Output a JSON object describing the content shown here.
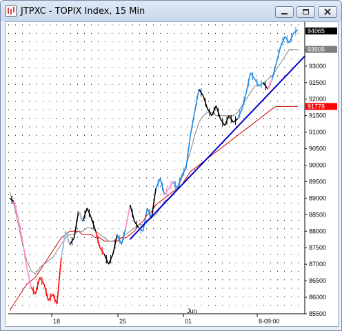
{
  "window": {
    "title": "JTPXC - TOPIX Index, 15 Min",
    "buttons": [
      "minimize",
      "maximize",
      "close"
    ]
  },
  "icons": {
    "app_icon": "candlestick-chart-icon",
    "minimize": "minimize-icon",
    "maximize": "maximize-icon",
    "close": "close-icon"
  },
  "colors": {
    "up_bar": "#1e88e5",
    "down_bar": "#000000",
    "red_bar": "#ff0000",
    "pink_bar": "#ff88cc",
    "lightblue_bar": "#99b8d8",
    "trendline": "#0000cc",
    "ma_slow": "#cc0000",
    "ma_fast": "#808080",
    "grid": "#000000"
  },
  "price_labels": {
    "last_price": "94065",
    "ma_fast_value": "93505",
    "ma_slow_value": "91778"
  },
  "chart_data": {
    "type": "line",
    "title": "JTPXC - TOPIX Index, 15 Min",
    "xlabel": "",
    "ylabel": "",
    "ylim": [
      85500,
      94250
    ],
    "y_ticks": [
      "93500",
      "93000",
      "92500",
      "92000",
      "91500",
      "91000",
      "90500",
      "90000",
      "89500",
      "89000",
      "88500",
      "88000",
      "87500",
      "87000",
      "86500",
      "86000",
      "85500"
    ],
    "x_ticks": [
      "18",
      "25",
      "01",
      "8-09:00"
    ],
    "x_annotations": [
      "Jun"
    ],
    "grid": true,
    "series": [
      {
        "name": "",
        "role": "price",
        "values": [
          89000,
          88900,
          88400,
          87700,
          86900,
          86300,
          86100,
          86600,
          86400,
          85900,
          86100,
          85800,
          87200,
          88000,
          87600,
          87800,
          88600,
          88300,
          88700,
          88400,
          88000,
          87500,
          87300,
          87000,
          87300,
          87900,
          87600,
          88100,
          88800,
          88300,
          88100,
          88000,
          88700,
          88400,
          89300,
          89600,
          89100,
          89300,
          89500,
          89300,
          89700,
          89900,
          90900,
          91600,
          92300,
          92100,
          91700,
          91500,
          91800,
          91400,
          91200,
          91500,
          91300,
          91400,
          91700,
          92200,
          92800,
          92600,
          92400,
          92500,
          92300,
          92600,
          93100,
          93600,
          93900,
          93700,
          94000,
          94100
        ],
        "colors_by_segment": [
          "black",
          "pink",
          "pink",
          "pink",
          "pink",
          "red",
          "red",
          "red",
          "red",
          "red",
          "red",
          "red",
          "lightblue",
          "lightblue",
          "black",
          "black",
          "lightblue",
          "black",
          "black",
          "black",
          "red",
          "red",
          "black",
          "black",
          "black",
          "blue",
          "blue",
          "pink",
          "black",
          "black",
          "blue",
          "blue",
          "blue",
          "black",
          "blue",
          "blue",
          "pink",
          "pink",
          "blue",
          "blue",
          "blue",
          "blue",
          "blue",
          "blue",
          "black",
          "black",
          "black",
          "black",
          "black",
          "black",
          "black",
          "black",
          "black",
          "blue",
          "blue",
          "blue",
          "blue",
          "blue",
          "blue",
          "black",
          "pink",
          "blue",
          "blue",
          "blue",
          "blue",
          "blue",
          "blue",
          "blue"
        ]
      },
      {
        "name": "",
        "role": "ma_fast",
        "values": [
          89200,
          88800,
          88200,
          87600,
          87100,
          86800,
          86700,
          86900,
          87000,
          87100,
          87200,
          87400,
          87600,
          87800,
          87900,
          87900,
          88000,
          88000,
          88100,
          88100,
          88000,
          87900,
          87800,
          87700,
          87700,
          87800,
          87800,
          87900,
          88000,
          88100,
          88200,
          88200,
          88300,
          88400,
          88500,
          88700,
          88900,
          89000,
          89100,
          89300,
          89600,
          90000,
          90400,
          90900,
          91300,
          91500,
          91600,
          91600,
          91500,
          91500,
          91500,
          91500,
          91500,
          91600,
          91800,
          92000,
          92200,
          92400,
          92400,
          92500,
          92600,
          92700,
          92900,
          93100,
          93300,
          93500,
          93500,
          93500
        ]
      },
      {
        "name": "",
        "role": "ma_slow",
        "values": [
          85600,
          85800,
          86000,
          86200,
          86400,
          86500,
          86600,
          86800,
          87000,
          87200,
          87400,
          87600,
          87800,
          87900,
          88000,
          88000,
          88000,
          87900,
          87900,
          87900,
          87800,
          87800,
          87700,
          87700,
          87700,
          87700,
          87800,
          87800,
          87900,
          88000,
          88200,
          88300,
          88500,
          88600,
          88800,
          88900,
          89000,
          89100,
          89200,
          89300,
          89400,
          89600,
          89800,
          89900,
          90000,
          90100,
          90200,
          90300,
          90400,
          90500,
          90600,
          90700,
          90800,
          90900,
          91000,
          91100,
          91200,
          91300,
          91400,
          91500,
          91600,
          91700,
          91778,
          91778,
          91778,
          91778,
          91778,
          91778
        ]
      },
      {
        "name": "",
        "role": "trendline",
        "points": [
          [
            0.41,
            87750
          ],
          [
            1.0,
            93300
          ]
        ]
      }
    ]
  }
}
